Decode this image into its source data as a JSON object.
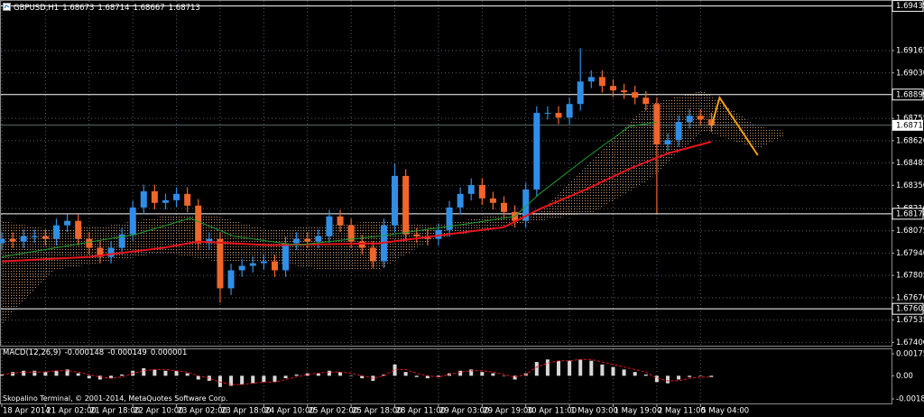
{
  "chart_data": [
    {
      "type": "candlestick",
      "symbol": "GBPUSD,H1",
      "quote": [
        1.68673,
        1.68714,
        1.68667,
        1.68713
      ],
      "x": [
        0,
        4,
        8,
        12,
        16,
        20,
        24,
        28,
        32,
        36,
        40,
        44,
        48,
        52,
        56,
        60,
        64,
        68,
        72,
        76,
        80,
        84,
        88,
        92,
        96,
        100,
        104,
        108,
        112,
        116,
        120,
        124,
        128,
        132,
        136,
        140,
        144,
        148,
        152,
        156,
        160,
        164,
        168,
        172,
        176,
        180,
        184,
        188,
        192,
        196,
        200,
        204,
        208,
        212,
        216,
        220,
        224,
        228,
        232,
        236,
        240,
        244,
        248,
        252,
        256,
        260
      ],
      "open": [
        1.68,
        1.68026,
        1.6801,
        1.68042,
        1.68042,
        1.68026,
        1.68108,
        1.68135,
        1.68026,
        1.67972,
        1.67917,
        1.67972,
        1.68053,
        1.68216,
        1.68314,
        1.68244,
        1.6826,
        1.68298,
        1.68227,
        1.67999,
        1.68026,
        1.67727,
        1.67836,
        1.67863,
        1.67879,
        1.6789,
        1.67836,
        1.67999,
        1.68026,
        1.6801,
        1.68042,
        1.68162,
        1.68108,
        1.6801,
        1.67972,
        1.6789,
        1.68108,
        1.68407,
        1.68053,
        1.68042,
        1.68026,
        1.6808,
        1.68216,
        1.68298,
        1.68352,
        1.68271,
        1.68244,
        1.68189,
        1.68135,
        1.68325,
        1.68788,
        1.68788,
        1.6876,
        1.68842,
        1.68978,
        1.69005,
        1.68951,
        1.68924,
        1.68913,
        1.6888,
        1.68842,
        1.68597,
        1.68624,
        1.68733,
        1.68771,
        1.68749
      ],
      "high": [
        1.68066,
        1.68066,
        1.68082,
        1.68082,
        1.68082,
        1.68148,
        1.68175,
        1.68175,
        1.68066,
        1.68012,
        1.68012,
        1.68093,
        1.68256,
        1.68354,
        1.68354,
        1.683,
        1.68338,
        1.68338,
        1.68267,
        1.68066,
        1.68066,
        1.67876,
        1.67903,
        1.67919,
        1.6793,
        1.6793,
        1.68039,
        1.68066,
        1.68066,
        1.68082,
        1.68202,
        1.68202,
        1.68148,
        1.6805,
        1.68012,
        1.68148,
        1.6848,
        1.68447,
        1.68093,
        1.68082,
        1.6812,
        1.68256,
        1.68338,
        1.68392,
        1.68392,
        1.68311,
        1.68284,
        1.68229,
        1.68365,
        1.68828,
        1.68828,
        1.68828,
        1.68882,
        1.6918,
        1.69045,
        1.69045,
        1.68991,
        1.68964,
        1.68953,
        1.6892,
        1.68882,
        1.68664,
        1.68773,
        1.68811,
        1.68811,
        1.68789
      ],
      "low": [
        1.6796,
        1.6797,
        1.6797,
        1.68002,
        1.67986,
        1.67986,
        1.68068,
        1.67986,
        1.67932,
        1.67877,
        1.67877,
        1.67932,
        1.68013,
        1.68176,
        1.68204,
        1.68204,
        1.6822,
        1.68187,
        1.67959,
        1.67959,
        1.6764,
        1.67687,
        1.67796,
        1.67823,
        1.67839,
        1.67796,
        1.67796,
        1.67959,
        1.6797,
        1.6797,
        1.68002,
        1.68068,
        1.6797,
        1.67932,
        1.6785,
        1.6785,
        1.68068,
        1.68013,
        1.68002,
        1.67986,
        1.67986,
        1.6804,
        1.68176,
        1.68258,
        1.68231,
        1.68204,
        1.68149,
        1.68095,
        1.68095,
        1.68285,
        1.68748,
        1.6872,
        1.6872,
        1.68802,
        1.68938,
        1.68911,
        1.68884,
        1.68873,
        1.6884,
        1.68802,
        1.6818,
        1.68557,
        1.68584,
        1.68693,
        1.68709,
        1.68673
      ],
      "close": [
        1.68026,
        1.6801,
        1.68042,
        1.68042,
        1.68026,
        1.68108,
        1.68135,
        1.68026,
        1.67972,
        1.67917,
        1.67972,
        1.68053,
        1.68216,
        1.68314,
        1.68244,
        1.6826,
        1.68298,
        1.68227,
        1.67999,
        1.68026,
        1.67727,
        1.67836,
        1.67863,
        1.67879,
        1.6789,
        1.67836,
        1.67999,
        1.68026,
        1.6801,
        1.68042,
        1.68162,
        1.68108,
        1.6801,
        1.67972,
        1.6789,
        1.68108,
        1.68407,
        1.68053,
        1.68042,
        1.68026,
        1.6808,
        1.68216,
        1.68298,
        1.68352,
        1.68271,
        1.68244,
        1.68189,
        1.68135,
        1.68325,
        1.68788,
        1.68788,
        1.6876,
        1.68842,
        1.68978,
        1.69005,
        1.68951,
        1.68924,
        1.68913,
        1.6888,
        1.68842,
        1.68597,
        1.68624,
        1.68733,
        1.68771,
        1.68749,
        1.68713
      ],
      "up_color": "#2f8fe8",
      "down_color": "#f0662a",
      "xlim": [
        0,
        326
      ],
      "ylim": [
        1.6738,
        1.6946
      ],
      "yticks": [
        1.69165,
        {
          "value": 1.6903,
          "label": "1.69030"
        },
        1.68755,
        {
          "value": 1.6862,
          "label": "1.68620"
        },
        1.68485,
        {
          "value": 1.6835,
          "label": "1.68350"
        },
        {
          "value": 1.6821,
          "label": "1.68210"
        },
        1.68075,
        {
          "value": 1.6794,
          "label": "1.67940"
        },
        1.67805,
        {
          "value": 1.6767,
          "label": "1.67670"
        },
        1.67535,
        {
          "value": 1.674,
          "label": "1.67400"
        }
      ],
      "xticks": [
        {
          "value": 0,
          "label": "18 Apr 2014"
        },
        {
          "value": 16,
          "label": "21 Apr 02:00"
        },
        {
          "value": 32,
          "label": "21 Apr 18:00"
        },
        {
          "value": 48,
          "label": "22 Apr 10:00"
        },
        {
          "value": 64,
          "label": "23 Apr 02:00"
        },
        {
          "value": 80,
          "label": "23 Apr 18:00"
        },
        {
          "value": 96,
          "label": "24 Apr 10:00"
        },
        {
          "value": 112,
          "label": "25 Apr 02:00"
        },
        {
          "value": 128,
          "label": "25 Apr 18:00"
        },
        {
          "value": 144,
          "label": "28 Apr 11:00"
        },
        {
          "value": 160,
          "label": "29 Apr 03:00"
        },
        {
          "value": 176,
          "label": "29 Apr 19:00"
        },
        {
          "value": 192,
          "label": "30 Apr 11:00"
        },
        {
          "value": 208,
          "label": "1 May 03:00"
        },
        {
          "value": 224,
          "label": "1 May 19:00"
        },
        {
          "value": 240,
          "label": "2 May 11:00"
        },
        {
          "value": 256,
          "label": "5 May 04:00"
        }
      ],
      "grid": true,
      "levels": [
        1.69435,
        1.68899,
        1.68178,
        1.67603
      ],
      "level_color": "#ffffff",
      "current_price": 1.68713,
      "moving_averages": [
        {
          "color": "#e8141c",
          "x": [
            0,
            32,
            59,
            72,
            98,
            138,
            158,
            184,
            197,
            214,
            230,
            244,
            260
          ],
          "values": [
            1.6789,
            1.67917,
            1.67972,
            1.6801,
            1.67988,
            1.67999,
            1.68042,
            1.68097,
            1.68206,
            1.68325,
            1.6845,
            1.68543,
            1.68614
          ]
        },
        {
          "color": "#1f9e2f",
          "x": [
            0,
            49,
            69,
            85,
            108,
            138,
            171,
            188,
            197,
            214,
            230,
            240
          ],
          "values": [
            1.67917,
            1.68053,
            1.68151,
            1.68042,
            1.67988,
            1.68042,
            1.68118,
            1.68162,
            1.68298,
            1.68515,
            1.68706,
            1.68733
          ]
        }
      ],
      "forecast": {
        "color": "#f5a011",
        "x": [
          260,
          263,
          277
        ],
        "values": [
          1.68706,
          1.6888,
          1.68532
        ]
      },
      "cloud": {
        "color": "#d9a77a",
        "x": [
          0,
          19,
          39,
          59,
          79,
          98,
          118,
          138,
          158,
          178,
          197,
          217,
          237,
          257,
          277,
          287
        ],
        "upper": [
          1.68135,
          1.6808,
          1.68108,
          1.68162,
          1.68162,
          1.6808,
          1.68108,
          1.68135,
          1.68108,
          1.68162,
          1.68189,
          1.68516,
          1.68842,
          1.68924,
          1.68706,
          1.68679
        ],
        "lower": [
          1.67509,
          1.67836,
          1.6789,
          1.67944,
          1.6789,
          1.6789,
          1.67836,
          1.67836,
          1.68026,
          1.6808,
          1.68135,
          1.68189,
          1.6838,
          1.68679,
          1.6857,
          1.68652
        ]
      }
    },
    {
      "type": "macd",
      "name": "MACD(12,26,9)",
      "readout": [
        -0.000148,
        -0.000149,
        1e-06
      ],
      "x": [
        0,
        4,
        8,
        12,
        16,
        20,
        24,
        28,
        32,
        36,
        40,
        44,
        48,
        52,
        56,
        60,
        64,
        68,
        72,
        76,
        80,
        84,
        88,
        92,
        96,
        100,
        104,
        108,
        112,
        116,
        120,
        124,
        128,
        132,
        136,
        140,
        144,
        148,
        152,
        156,
        160,
        164,
        168,
        172,
        176,
        180,
        184,
        188,
        192,
        196,
        200,
        204,
        208,
        212,
        216,
        220,
        224,
        228,
        232,
        236,
        240,
        244,
        248,
        252,
        256,
        260
      ],
      "values": [
        0.0001,
        0.0003,
        0.0004,
        0.0004,
        0.0003,
        0.0004,
        0.0005,
        0.0002,
        -0.0002,
        -0.0003,
        -0.0002,
        0.0001,
        0.0004,
        0.0006,
        0.0005,
        0.0004,
        0.0004,
        0.0002,
        -0.0003,
        -0.0004,
        -0.0009,
        -0.0008,
        -0.0007,
        -0.0006,
        -0.0005,
        -0.0005,
        -0.0002,
        0.0001,
        0.0002,
        0.0002,
        0.0004,
        0.0003,
        0,
        -0.0002,
        -0.0004,
        0.0001,
        0.0009,
        0.0003,
        -0.0001,
        -0.0002,
        -0.0001,
        0.0002,
        0.0004,
        0.0005,
        0.0003,
        0.0002,
        0,
        -0.0003,
        0.0002,
        0.0011,
        0.0013,
        0.0012,
        0.0012,
        0.0013,
        0.0012,
        0.0009,
        0.0007,
        0.0005,
        0.0003,
        0.0001,
        -0.0005,
        -0.0006,
        -0.0003,
        -0.0001,
        0,
        -0.0001
      ],
      "signal": [
        0.0001,
        0.0002,
        0.0003,
        0.0003,
        0.0003,
        0.0004,
        0.0004,
        0.0003,
        0.0001,
        -0.0001,
        -0.0002,
        -0.0001,
        0.0002,
        0.0004,
        0.0005,
        0.0005,
        0.0004,
        0.0003,
        0,
        -0.0002,
        -0.0005,
        -0.0007,
        -0.0007,
        -0.0006,
        -0.0005,
        -0.0005,
        -0.0003,
        -0.0001,
        0.0001,
        0.0002,
        0.0003,
        0.0003,
        0.0002,
        0,
        -0.0002,
        0,
        0.0005,
        0.0005,
        0.0002,
        0,
        -0.0001,
        0.0001,
        0.0003,
        0.0004,
        0.0004,
        0.0003,
        0.0001,
        -0.0001,
        0.0001,
        0.0007,
        0.001,
        0.0012,
        0.0012,
        0.0013,
        0.0013,
        0.0011,
        0.0009,
        0.0007,
        0.0005,
        0.0003,
        -0.0002,
        -0.0004,
        -0.0004,
        -0.0002,
        -0.0001,
        -0.0001
      ],
      "color": "#d8d8d8",
      "signal_color": "#e8141c",
      "xlim": [
        0,
        326
      ],
      "ylim": [
        -0.00185,
        0.001752
      ],
      "yticks": [
        0.001752,
        {
          "value": 0,
          "label": "0.00"
        },
        -0.00185
      ]
    }
  ],
  "footer": "Skopalino Terminal, © 2001-2014, MetaQuotes Software Corp."
}
